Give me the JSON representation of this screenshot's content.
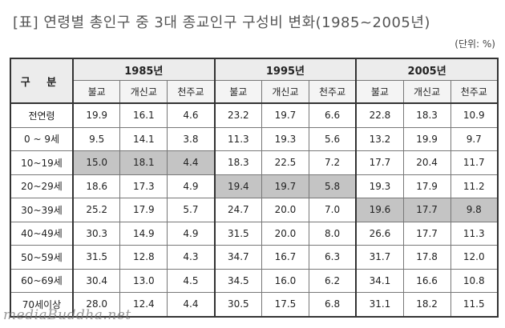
{
  "title": "[표] 연령별 총인구 중 3대 종교인구 구성비 변화(1985~2005년)",
  "unit": "(단위: %)",
  "table": {
    "corner": "구 분",
    "years": [
      "1985년",
      "1995년",
      "2005년"
    ],
    "religions": [
      "불교",
      "개신교",
      "천주교"
    ],
    "rows": [
      {
        "label": "전연령",
        "values": [
          "19.9",
          "16.1",
          "4.6",
          "23.2",
          "19.7",
          "6.6",
          "22.8",
          "18.3",
          "10.9"
        ]
      },
      {
        "label": "0 ~ 9세",
        "values": [
          "9.5",
          "14.1",
          "3.8",
          "11.3",
          "19.3",
          "5.6",
          "13.2",
          "19.9",
          "9.7"
        ]
      },
      {
        "label": "10~19세",
        "values": [
          "15.0",
          "18.1",
          "4.4",
          "18.3",
          "22.5",
          "7.2",
          "17.7",
          "20.4",
          "11.7"
        ]
      },
      {
        "label": "20~29세",
        "values": [
          "18.6",
          "17.3",
          "4.9",
          "19.4",
          "19.7",
          "5.8",
          "19.3",
          "17.9",
          "11.2"
        ]
      },
      {
        "label": "30~39세",
        "values": [
          "25.2",
          "17.9",
          "5.7",
          "24.7",
          "20.0",
          "7.0",
          "19.6",
          "17.7",
          "9.8"
        ]
      },
      {
        "label": "40~49세",
        "values": [
          "30.3",
          "14.9",
          "4.9",
          "31.5",
          "20.0",
          "8.0",
          "26.6",
          "17.7",
          "11.3"
        ]
      },
      {
        "label": "50~59세",
        "values": [
          "31.5",
          "12.8",
          "4.3",
          "34.7",
          "16.7",
          "6.3",
          "31.7",
          "17.8",
          "12.0"
        ]
      },
      {
        "label": "60~69세",
        "values": [
          "30.4",
          "13.0",
          "4.5",
          "34.5",
          "16.0",
          "6.2",
          "34.1",
          "16.6",
          "10.8"
        ]
      },
      {
        "label": "70세이상",
        "values": [
          "28.0",
          "12.4",
          "4.4",
          "30.5",
          "17.5",
          "6.8",
          "31.1",
          "18.2",
          "11.5"
        ]
      }
    ]
  },
  "watermark": "mediaBuddha.net"
}
